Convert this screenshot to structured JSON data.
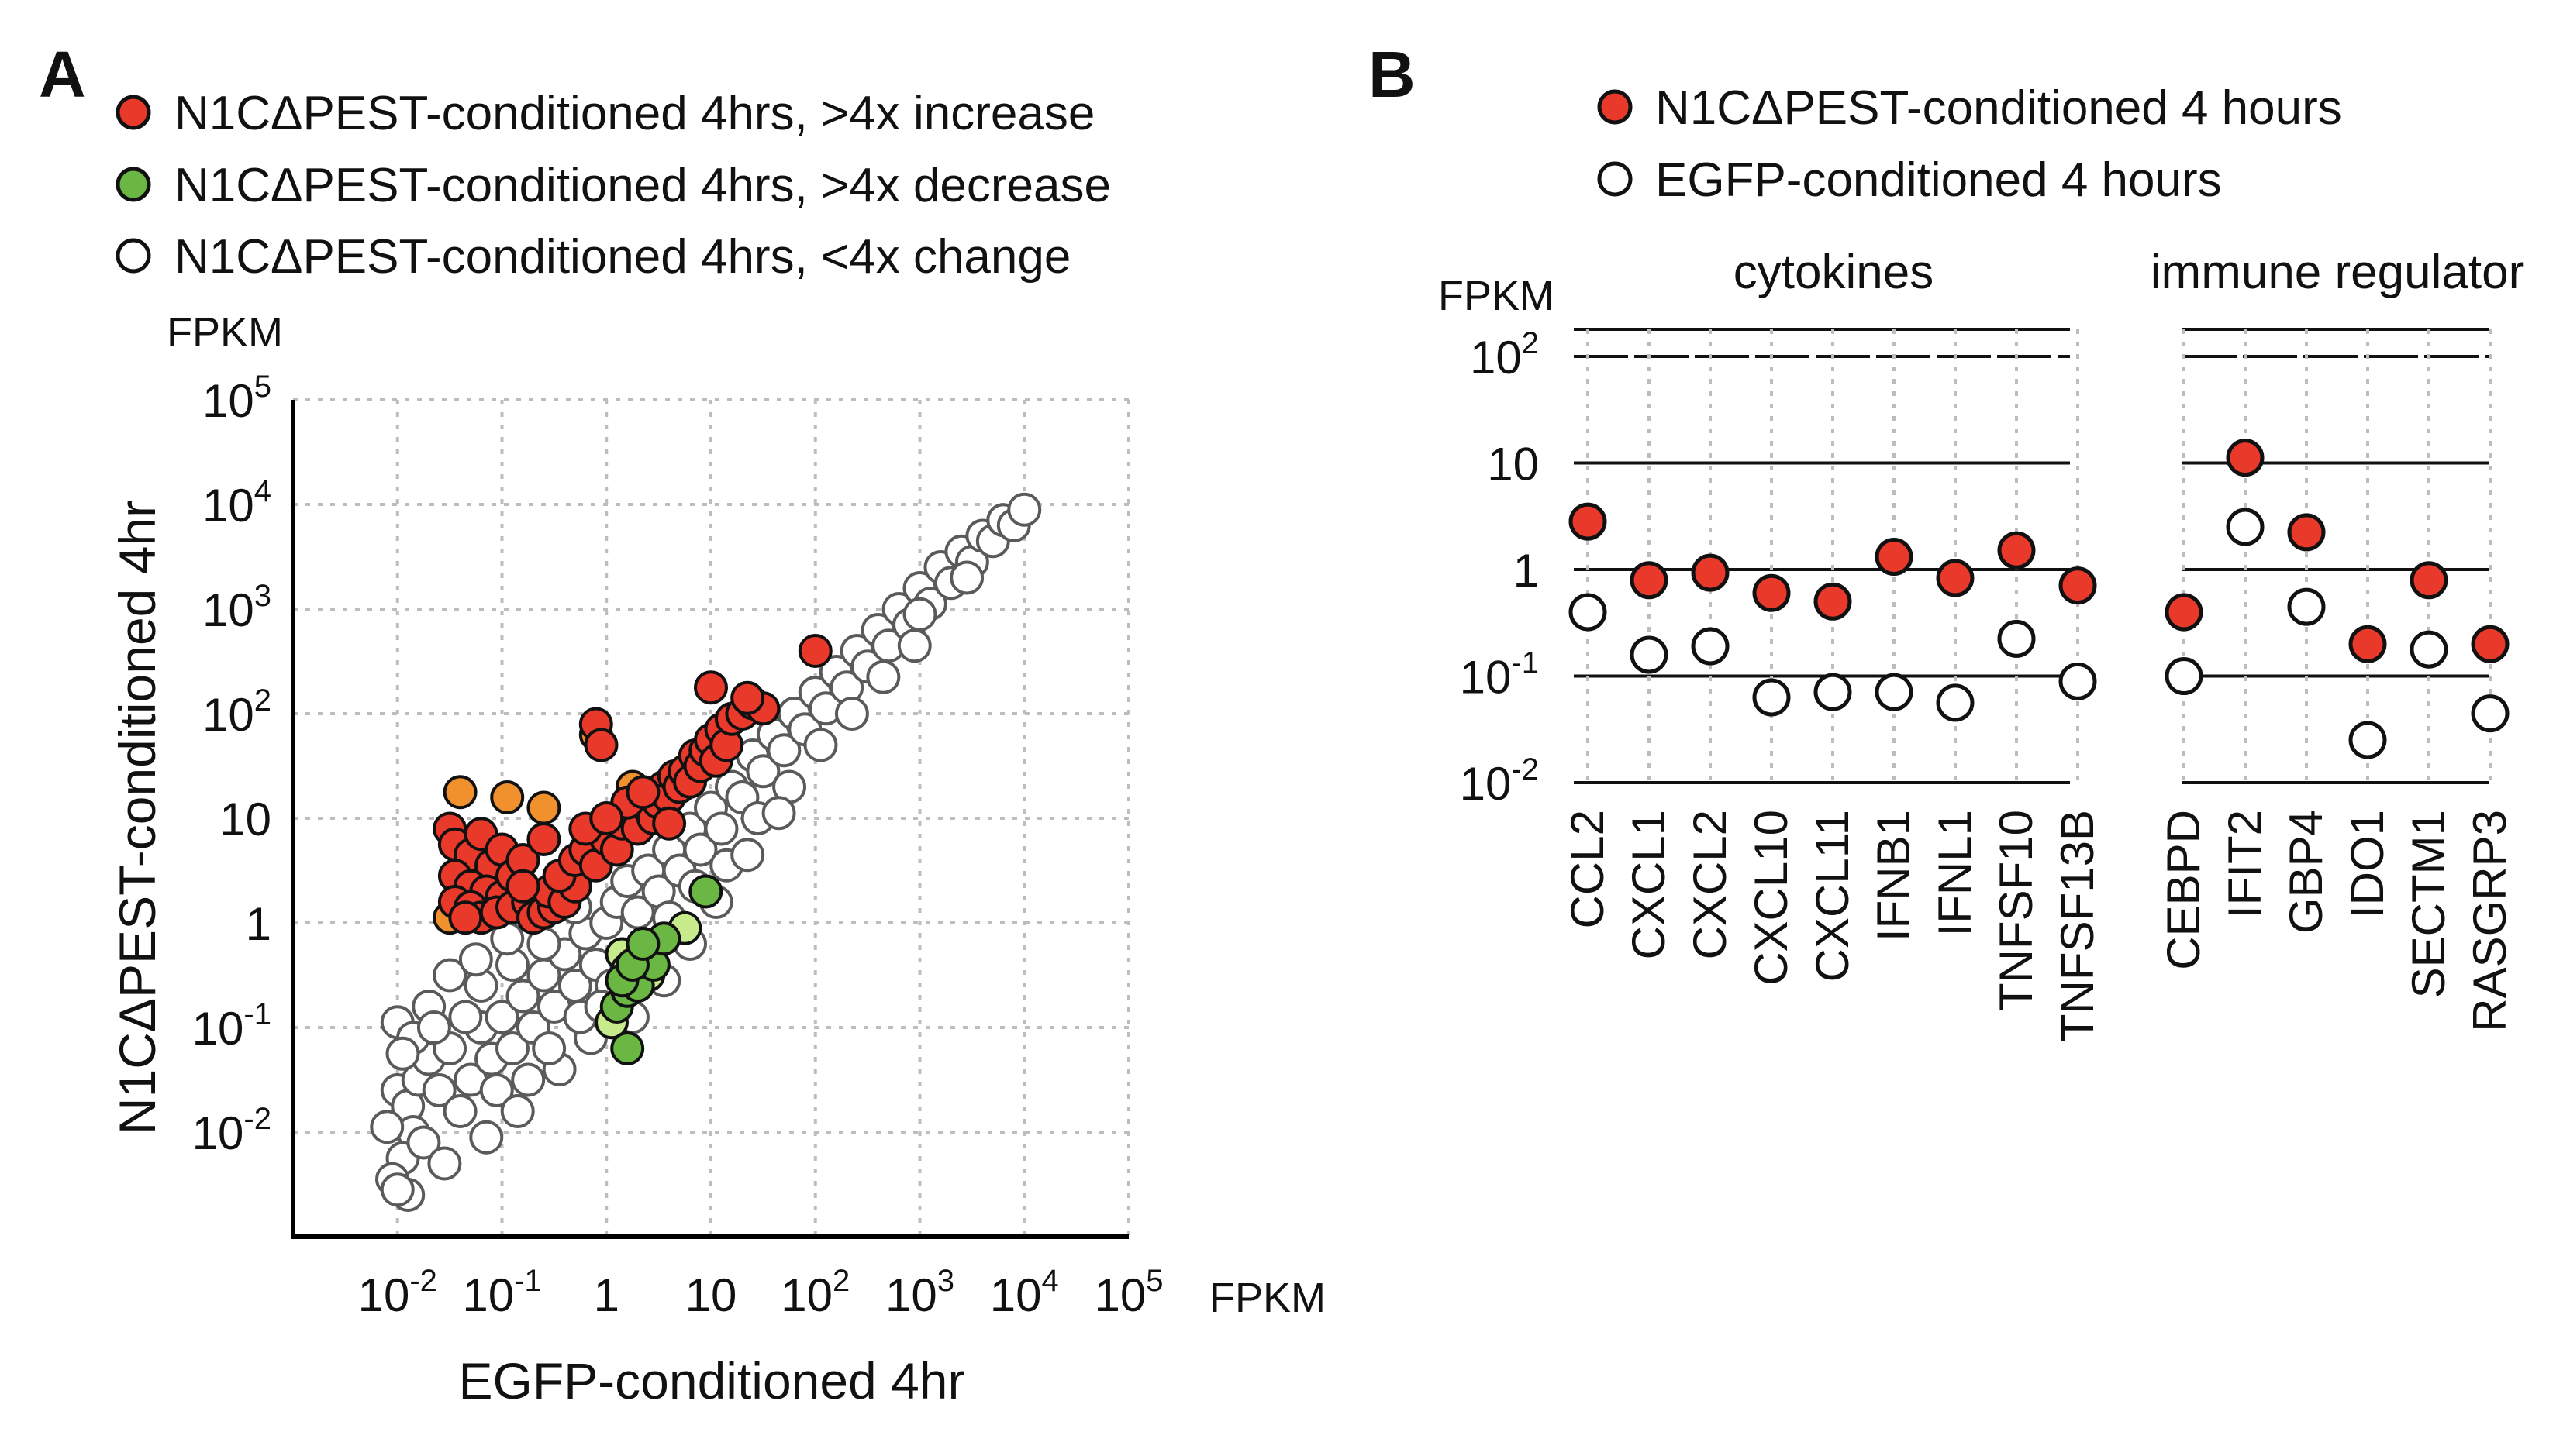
{
  "colors": {
    "increase": "#e8392b",
    "decrease": "#6ab843",
    "decrease_light": "#c8ec8c",
    "increase_orange": "#f0912d",
    "no_change": "#ffffff",
    "edge_grey": "#5a5a5a",
    "edge_black": "#111111"
  },
  "chart_data": [
    {
      "panel": "A",
      "type": "scatter",
      "xlabel": "EGFP-conditioned 4hr",
      "ylabel": "N1CΔPEST-conditioned 4hr",
      "x_unit": "FPKM",
      "y_unit": "FPKM",
      "scale": "log10",
      "xlim_log10": [
        -3,
        5
      ],
      "ylim_log10": [
        -3,
        5
      ],
      "ticks": [
        {
          "log": -2,
          "base": "10",
          "sup": "-2"
        },
        {
          "log": -1,
          "base": "10",
          "sup": "-1"
        },
        {
          "log": 0,
          "base": "1",
          "sup": ""
        },
        {
          "log": 1,
          "base": "10",
          "sup": ""
        },
        {
          "log": 2,
          "base": "10",
          "sup": "2"
        },
        {
          "log": 3,
          "base": "10",
          "sup": "3"
        },
        {
          "log": 4,
          "base": "10",
          "sup": "4"
        },
        {
          "log": 5,
          "base": "10",
          "sup": "5"
        }
      ],
      "legend": [
        {
          "label": "N1CΔPEST-conditioned 4hrs, >4x increase",
          "color": "increase"
        },
        {
          "label": "N1CΔPEST-conditioned 4hrs, >4x decrease",
          "color": "decrease"
        },
        {
          "label": "N1CΔPEST-conditioned 4hrs, <4x change",
          "color": "no_change"
        }
      ],
      "series": [
        {
          "name": ">4x increase",
          "color": "increase",
          "points_log10": [
            [
              -1.5,
              0.9
            ],
            [
              -1.45,
              0.75
            ],
            [
              -1.3,
              0.65
            ],
            [
              -1.2,
              0.85
            ],
            [
              -1.1,
              0.55
            ],
            [
              -1.0,
              0.7
            ],
            [
              -1.45,
              0.45
            ],
            [
              -1.3,
              0.35
            ],
            [
              -1.15,
              0.3
            ],
            [
              -1.0,
              0.25
            ],
            [
              -0.9,
              0.45
            ],
            [
              -0.8,
              0.6
            ],
            [
              -1.45,
              0.2
            ],
            [
              -1.3,
              0.15
            ],
            [
              -1.2,
              0.05
            ],
            [
              -1.05,
              0.1
            ],
            [
              -0.9,
              0.15
            ],
            [
              -0.75,
              0.2
            ],
            [
              -0.7,
              0.05
            ],
            [
              -0.6,
              0.1
            ],
            [
              -0.5,
              0.15
            ],
            [
              -0.55,
              0.3
            ],
            [
              -0.4,
              0.2
            ],
            [
              -0.3,
              0.35
            ],
            [
              -0.45,
              0.45
            ],
            [
              -0.3,
              0.6
            ],
            [
              -0.2,
              0.7
            ],
            [
              -0.1,
              0.55
            ],
            [
              0.0,
              0.8
            ],
            [
              0.1,
              0.7
            ],
            [
              -0.2,
              0.9
            ],
            [
              0.15,
              0.95
            ],
            [
              0.25,
              1.05
            ],
            [
              0.3,
              0.9
            ],
            [
              0.4,
              1.1
            ],
            [
              0.45,
              1.0
            ],
            [
              0.5,
              1.15
            ],
            [
              0.55,
              1.3
            ],
            [
              0.6,
              1.2
            ],
            [
              0.65,
              1.4
            ],
            [
              0.7,
              1.3
            ],
            [
              0.75,
              1.45
            ],
            [
              0.8,
              1.35
            ],
            [
              0.85,
              1.6
            ],
            [
              0.9,
              1.5
            ],
            [
              0.95,
              1.65
            ],
            [
              1.0,
              1.75
            ],
            [
              1.05,
              1.55
            ],
            [
              1.1,
              1.85
            ],
            [
              1.15,
              1.7
            ],
            [
              1.2,
              1.95
            ],
            [
              1.3,
              2.0
            ],
            [
              1.4,
              2.1
            ],
            [
              1.5,
              2.05
            ],
            [
              -0.1,
              1.9
            ],
            [
              -0.05,
              1.7
            ],
            [
              0.2,
              1.15
            ],
            [
              0.35,
              1.25
            ],
            [
              -0.6,
              0.8
            ],
            [
              -1.35,
              0.05
            ],
            [
              1.0,
              2.25
            ],
            [
              1.35,
              2.15
            ],
            [
              2.0,
              2.6
            ],
            [
              0.6,
              0.95
            ],
            [
              0.0,
              1.0
            ],
            [
              -0.8,
              0.35
            ]
          ]
        },
        {
          "name": ">4x increase (orange)",
          "color": "increase_orange",
          "points_log10": [
            [
              -1.4,
              1.25
            ],
            [
              -0.95,
              1.2
            ],
            [
              -0.6,
              1.1
            ],
            [
              -1.5,
              0.05
            ],
            [
              -0.1,
              1.8
            ],
            [
              0.25,
              1.3
            ]
          ]
        },
        {
          "name": ">4x decrease",
          "color": "decrease",
          "points_log10": [
            [
              0.1,
              -0.8
            ],
            [
              0.2,
              -0.65
            ],
            [
              0.3,
              -0.6
            ],
            [
              0.45,
              -0.4
            ],
            [
              0.55,
              -0.15
            ],
            [
              0.15,
              -0.55
            ],
            [
              0.25,
              -0.4
            ],
            [
              0.95,
              0.3
            ],
            [
              0.35,
              -0.2
            ],
            [
              0.2,
              -1.2
            ]
          ]
        },
        {
          "name": ">4x decrease (light)",
          "color": "decrease_light",
          "points_log10": [
            [
              0.15,
              -0.3
            ],
            [
              0.2,
              -0.45
            ],
            [
              0.05,
              -0.95
            ],
            [
              0.75,
              -0.05
            ],
            [
              0.4,
              -0.5
            ]
          ]
        },
        {
          "name": "<4x change",
          "color": "no_change",
          "points_log10": [
            [
              -2.0,
              -1.6
            ],
            [
              -1.9,
              -1.75
            ],
            [
              -1.8,
              -1.5
            ],
            [
              -1.85,
              -2.0
            ],
            [
              -1.95,
              -2.25
            ],
            [
              -2.05,
              -2.45
            ],
            [
              -1.9,
              -2.6
            ],
            [
              -1.75,
              -2.1
            ],
            [
              -1.7,
              -1.3
            ],
            [
              -1.6,
              -1.6
            ],
            [
              -2.0,
              -0.95
            ],
            [
              -1.85,
              -1.1
            ],
            [
              -1.5,
              -1.2
            ],
            [
              -1.4,
              -1.8
            ],
            [
              -1.3,
              -1.5
            ],
            [
              -1.2,
              -1.0
            ],
            [
              -1.1,
              -1.3
            ],
            [
              -1.0,
              -0.9
            ],
            [
              -0.9,
              -1.2
            ],
            [
              -0.8,
              -0.7
            ],
            [
              -0.7,
              -1.0
            ],
            [
              -0.6,
              -0.5
            ],
            [
              -0.5,
              -0.8
            ],
            [
              -0.4,
              -0.3
            ],
            [
              -0.3,
              -0.6
            ],
            [
              -0.2,
              -0.1
            ],
            [
              -0.1,
              -0.4
            ],
            [
              0.0,
              0.0
            ],
            [
              0.1,
              0.2
            ],
            [
              0.2,
              0.4
            ],
            [
              0.3,
              0.1
            ],
            [
              0.4,
              0.5
            ],
            [
              0.5,
              0.3
            ],
            [
              0.6,
              0.7
            ],
            [
              0.7,
              0.5
            ],
            [
              0.8,
              0.9
            ],
            [
              0.9,
              0.7
            ],
            [
              1.0,
              1.1
            ],
            [
              1.1,
              0.9
            ],
            [
              1.2,
              1.3
            ],
            [
              1.3,
              1.2
            ],
            [
              1.4,
              1.6
            ],
            [
              1.5,
              1.45
            ],
            [
              1.6,
              1.8
            ],
            [
              1.7,
              1.65
            ],
            [
              1.8,
              2.0
            ],
            [
              1.9,
              1.85
            ],
            [
              2.0,
              2.2
            ],
            [
              2.1,
              2.05
            ],
            [
              2.2,
              2.4
            ],
            [
              2.3,
              2.25
            ],
            [
              2.4,
              2.6
            ],
            [
              2.5,
              2.45
            ],
            [
              2.6,
              2.8
            ],
            [
              2.7,
              2.65
            ],
            [
              2.8,
              3.0
            ],
            [
              2.9,
              2.85
            ],
            [
              3.0,
              3.2
            ],
            [
              3.1,
              3.05
            ],
            [
              3.2,
              3.4
            ],
            [
              3.3,
              3.25
            ],
            [
              3.4,
              3.55
            ],
            [
              3.5,
              3.45
            ],
            [
              3.6,
              3.7
            ],
            [
              3.7,
              3.65
            ],
            [
              3.8,
              3.85
            ],
            [
              3.9,
              3.8
            ],
            [
              4.0,
              3.95
            ],
            [
              3.45,
              3.3
            ],
            [
              3.0,
              2.95
            ],
            [
              -1.5,
              -0.5
            ],
            [
              -1.2,
              -0.6
            ],
            [
              -0.9,
              -0.4
            ],
            [
              -0.6,
              -0.2
            ],
            [
              -0.3,
              0.15
            ],
            [
              -1.7,
              -0.8
            ],
            [
              -1.35,
              -0.9
            ],
            [
              -1.05,
              -1.6
            ],
            [
              -0.75,
              -1.5
            ],
            [
              -0.45,
              -1.4
            ],
            [
              -0.15,
              -1.1
            ],
            [
              -0.25,
              -0.9
            ],
            [
              0.05,
              -0.6
            ],
            [
              -0.55,
              -1.2
            ],
            [
              -0.85,
              -1.8
            ],
            [
              -1.15,
              -2.05
            ],
            [
              -1.55,
              -2.3
            ],
            [
              -1.65,
              -1.0
            ],
            [
              -1.25,
              -0.35
            ],
            [
              -0.95,
              -0.15
            ],
            [
              0.35,
              -0.35
            ],
            [
              0.6,
              0.05
            ],
            [
              0.85,
              0.35
            ],
            [
              1.15,
              0.55
            ],
            [
              1.45,
              1.0
            ],
            [
              1.75,
              1.3
            ],
            [
              2.05,
              1.7
            ],
            [
              2.35,
              2.0
            ],
            [
              2.65,
              2.35
            ],
            [
              2.95,
              2.65
            ],
            [
              -0.05,
              -0.8
            ],
            [
              0.25,
              -0.9
            ],
            [
              0.55,
              -0.55
            ],
            [
              0.8,
              -0.2
            ],
            [
              1.05,
              0.2
            ],
            [
              1.35,
              0.65
            ],
            [
              1.65,
              1.05
            ],
            [
              -1.95,
              -1.25
            ],
            [
              -2.1,
              -1.95
            ],
            [
              -2.0,
              -2.55
            ]
          ]
        }
      ]
    },
    {
      "panel": "B",
      "type": "dot",
      "ylabel_unit": "FPKM",
      "scale": "log10",
      "ylim_log10": [
        -2,
        2
      ],
      "y_ticks": [
        {
          "log": 2,
          "base": "10",
          "sup": "2"
        },
        {
          "log": 1,
          "base": "10",
          "sup": ""
        },
        {
          "log": 0,
          "base": "1",
          "sup": ""
        },
        {
          "log": -1,
          "base": "10",
          "sup": "-1"
        },
        {
          "log": -2,
          "base": "10",
          "sup": "-2"
        }
      ],
      "legend": [
        {
          "label": "N1CΔPEST-conditioned 4 hours",
          "color": "increase"
        },
        {
          "label": "EGFP-conditioned 4 hours",
          "color": "no_change"
        }
      ],
      "groups": [
        {
          "title": "cytokines",
          "genes": [
            "CCL2",
            "CXCL1",
            "CXCL2",
            "CXCL10",
            "CXCL11",
            "IFNB1",
            "IFNL1",
            "TNFSF10",
            "TNFSF13B"
          ],
          "n1c_log10": [
            0.45,
            -0.1,
            -0.03,
            -0.22,
            -0.3,
            0.12,
            -0.08,
            0.18,
            -0.15
          ],
          "egfp_log10": [
            -0.4,
            -0.8,
            -0.72,
            -1.2,
            -1.15,
            -1.15,
            -1.25,
            -0.65,
            -1.05
          ]
        },
        {
          "title": "immune regulator",
          "genes": [
            "CEBPD",
            "IFIT2",
            "GBP4",
            "IDO1",
            "SECTM1",
            "RASGRP3"
          ],
          "n1c_log10": [
            -0.4,
            1.05,
            0.35,
            -0.7,
            -0.1,
            -0.7
          ],
          "egfp_log10": [
            -1.0,
            0.4,
            -0.35,
            -1.6,
            -0.75,
            -1.35
          ]
        }
      ]
    }
  ]
}
